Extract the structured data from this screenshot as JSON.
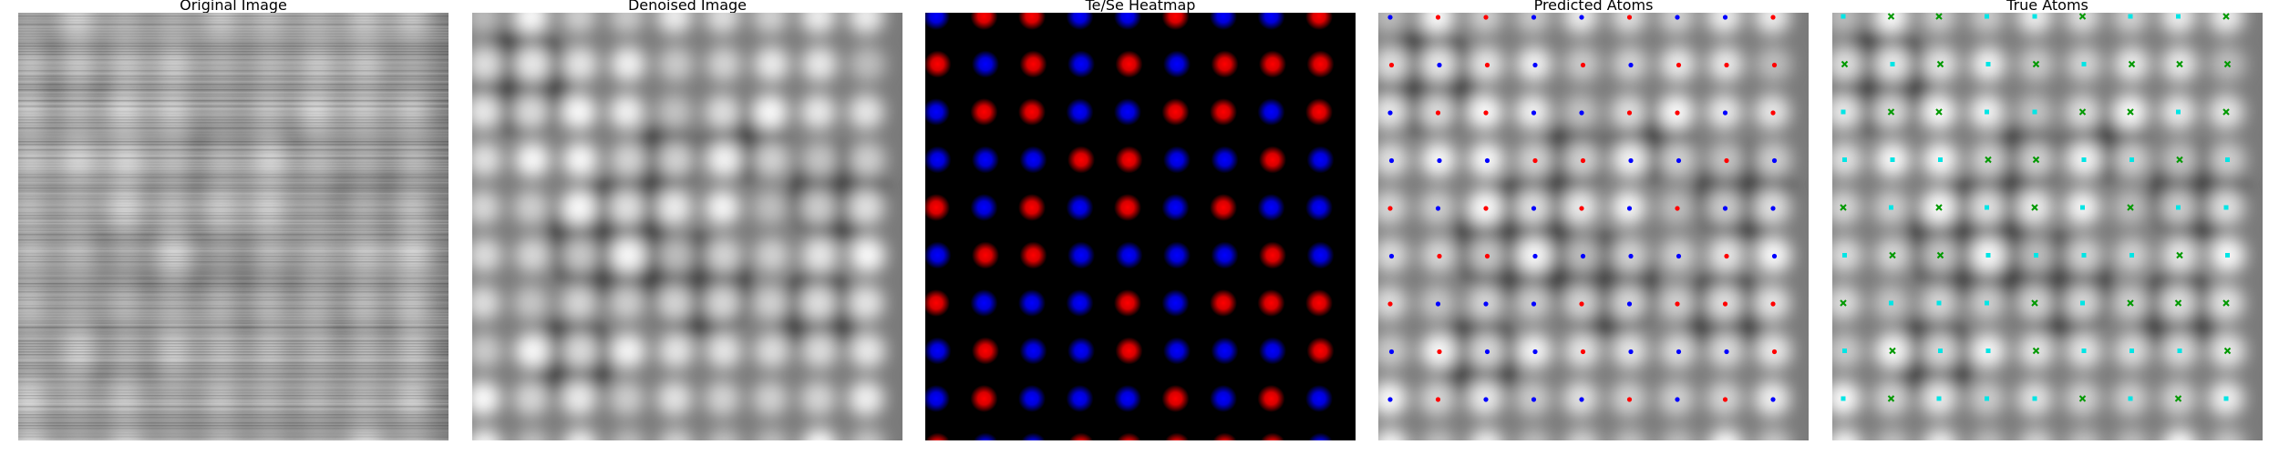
{
  "panels": [
    {
      "key": "original",
      "title": "Original Image"
    },
    {
      "key": "denoised",
      "title": "Denoised Image"
    },
    {
      "key": "heatmap",
      "title": "Te/Se Heatmap"
    },
    {
      "key": "predicted",
      "title": "Predicted Atoms"
    },
    {
      "key": "true",
      "title": "True Atoms"
    }
  ],
  "colors": {
    "te": "#ff0000",
    "se": "#0000ff",
    "true_a": "#00e5e5",
    "true_b": "#009900",
    "heat_bg": "#000000"
  },
  "lattice_atoms": [
    [
      0,
      0,
      "b"
    ],
    [
      1,
      0,
      "r"
    ],
    [
      2,
      0,
      "r"
    ],
    [
      3,
      0,
      "b"
    ],
    [
      4,
      0,
      "b"
    ],
    [
      5,
      0,
      "r"
    ],
    [
      6,
      0,
      "b"
    ],
    [
      7,
      0,
      "b"
    ],
    [
      8,
      0,
      "r"
    ],
    [
      0,
      1,
      "r"
    ],
    [
      1,
      1,
      "b"
    ],
    [
      2,
      1,
      "r"
    ],
    [
      3,
      1,
      "b"
    ],
    [
      4,
      1,
      "r"
    ],
    [
      5,
      1,
      "b"
    ],
    [
      6,
      1,
      "r"
    ],
    [
      7,
      1,
      "r"
    ],
    [
      8,
      1,
      "r"
    ],
    [
      0,
      2,
      "b"
    ],
    [
      1,
      2,
      "r"
    ],
    [
      2,
      2,
      "r"
    ],
    [
      3,
      2,
      "b"
    ],
    [
      4,
      2,
      "b"
    ],
    [
      5,
      2,
      "r"
    ],
    [
      6,
      2,
      "r"
    ],
    [
      7,
      2,
      "b"
    ],
    [
      8,
      2,
      "r"
    ],
    [
      0,
      3,
      "b"
    ],
    [
      1,
      3,
      "b"
    ],
    [
      2,
      3,
      "b"
    ],
    [
      3,
      3,
      "r"
    ],
    [
      4,
      3,
      "r"
    ],
    [
      5,
      3,
      "b"
    ],
    [
      6,
      3,
      "b"
    ],
    [
      7,
      3,
      "r"
    ],
    [
      8,
      3,
      "b"
    ],
    [
      0,
      4,
      "r"
    ],
    [
      1,
      4,
      "b"
    ],
    [
      2,
      4,
      "r"
    ],
    [
      3,
      4,
      "b"
    ],
    [
      4,
      4,
      "r"
    ],
    [
      5,
      4,
      "b"
    ],
    [
      6,
      4,
      "r"
    ],
    [
      7,
      4,
      "b"
    ],
    [
      8,
      4,
      "b"
    ],
    [
      0,
      5,
      "b"
    ],
    [
      1,
      5,
      "r"
    ],
    [
      2,
      5,
      "r"
    ],
    [
      3,
      5,
      "b"
    ],
    [
      4,
      5,
      "b"
    ],
    [
      5,
      5,
      "b"
    ],
    [
      6,
      5,
      "b"
    ],
    [
      7,
      5,
      "r"
    ],
    [
      8,
      5,
      "b"
    ],
    [
      0,
      6,
      "r"
    ],
    [
      1,
      6,
      "b"
    ],
    [
      2,
      6,
      "b"
    ],
    [
      3,
      6,
      "b"
    ],
    [
      4,
      6,
      "r"
    ],
    [
      5,
      6,
      "b"
    ],
    [
      6,
      6,
      "r"
    ],
    [
      7,
      6,
      "r"
    ],
    [
      8,
      6,
      "r"
    ],
    [
      0,
      7,
      "b"
    ],
    [
      1,
      7,
      "r"
    ],
    [
      2,
      7,
      "b"
    ],
    [
      3,
      7,
      "b"
    ],
    [
      4,
      7,
      "r"
    ],
    [
      5,
      7,
      "b"
    ],
    [
      6,
      7,
      "b"
    ],
    [
      7,
      7,
      "b"
    ],
    [
      8,
      7,
      "r"
    ],
    [
      0,
      8,
      "b"
    ],
    [
      1,
      8,
      "r"
    ],
    [
      2,
      8,
      "b"
    ],
    [
      3,
      8,
      "b"
    ],
    [
      4,
      8,
      "b"
    ],
    [
      5,
      8,
      "r"
    ],
    [
      6,
      8,
      "b"
    ],
    [
      7,
      8,
      "r"
    ],
    [
      8,
      8,
      "b"
    ],
    [
      0,
      9,
      "r"
    ],
    [
      1,
      9,
      "b"
    ],
    [
      2,
      9,
      "b"
    ],
    [
      3,
      9,
      "r"
    ],
    [
      4,
      9,
      "r"
    ],
    [
      5,
      9,
      "r"
    ],
    [
      6,
      9,
      "r"
    ],
    [
      7,
      9,
      "r"
    ],
    [
      8,
      9,
      "b"
    ]
  ]
}
